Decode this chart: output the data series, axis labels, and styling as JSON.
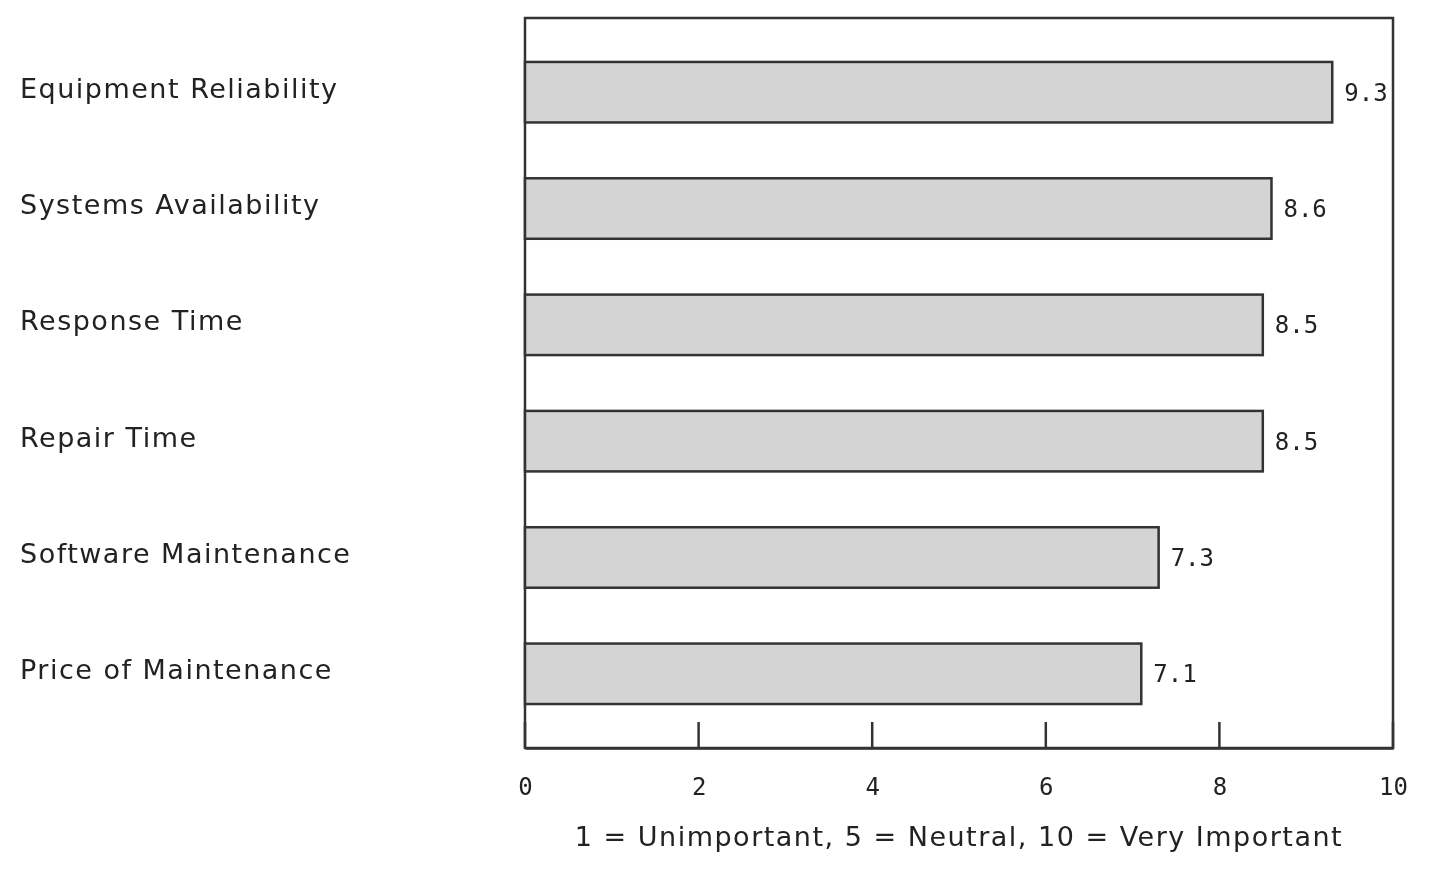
{
  "chart_data": {
    "type": "bar",
    "orientation": "horizontal",
    "categories": [
      "Equipment Reliability",
      "Systems Availability",
      "Response Time",
      "Repair Time",
      "Software Maintenance",
      "Price of Maintenance"
    ],
    "values": [
      9.3,
      8.6,
      8.5,
      8.5,
      7.3,
      7.1
    ],
    "color": "#d4d4d4",
    "xlim": [
      0,
      10
    ],
    "xticks": [
      0,
      2,
      4,
      6,
      8,
      10
    ],
    "xlabel": "1 = Unimportant, 5 = Neutral, 10 = Very Important",
    "data_labels": true,
    "grid": false
  }
}
